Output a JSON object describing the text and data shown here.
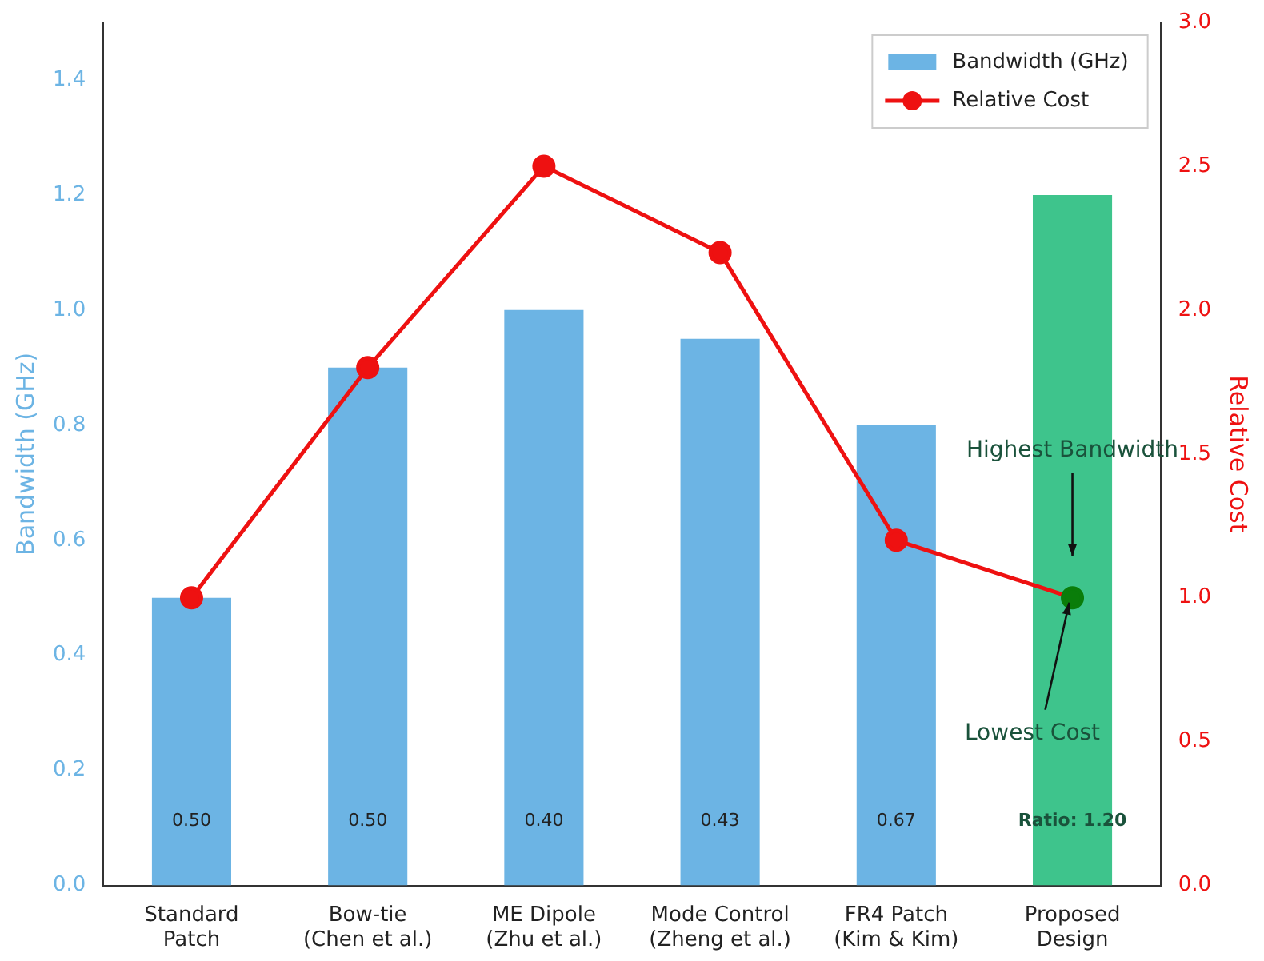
{
  "chart_data": {
    "type": "bar",
    "categories": [
      "Standard\nPatch",
      "Bow-tie\n(Chen et al.)",
      "ME Dipole\n(Zhu et al.)",
      "Mode Control\n(Zheng et al.)",
      "FR4 Patch\n(Kim & Kim)",
      "Proposed\nDesign"
    ],
    "series": [
      {
        "name": "Bandwidth (GHz)",
        "color": "#6cb4e4",
        "colors": [
          "#6cb4e4",
          "#6cb4e4",
          "#6cb4e4",
          "#6cb4e4",
          "#6cb4e4",
          "#3ec48c"
        ],
        "values": [
          0.5,
          0.9,
          1.0,
          0.95,
          0.8,
          1.2
        ]
      },
      {
        "name": "Relative Cost",
        "type": "line",
        "axis": "y2",
        "color": "#ee1111",
        "colors": [
          "#ee1111",
          "#ee1111",
          "#ee1111",
          "#ee1111",
          "#ee1111",
          "#0a7d0a"
        ],
        "values": [
          1.0,
          1.8,
          2.5,
          2.2,
          1.2,
          1.0
        ],
        "marker": "circle",
        "line_style": "solid"
      }
    ],
    "ylabel": "Bandwidth (GHz)",
    "y2label": "Relative Cost",
    "ylim": [
      0,
      1.5
    ],
    "yticks": [
      {
        "value": 0,
        "label": "0.0"
      },
      0.2,
      0.4,
      0.6,
      0.8,
      {
        "value": 1,
        "label": "1.0"
      },
      1.2,
      1.4
    ],
    "y2lim": [
      0,
      3
    ],
    "y2ticks": [
      {
        "value": 0,
        "label": "0.0"
      },
      0.5,
      {
        "value": 1,
        "label": "1.0"
      },
      1.5,
      {
        "value": 2,
        "label": "2.0"
      },
      2.5,
      {
        "value": 3,
        "label": "3.0"
      }
    ],
    "annotations": [
      "0.50",
      "0.50",
      "0.40",
      "0.43",
      "0.67",
      "Ratio: 1.20",
      "Highest Bandwidth",
      {
        "text": "Lowest Cost",
        "x": "Proposed\nDesign",
        "y": 0.5
      }
    ],
    "legend": "top right",
    "grid": false
  }
}
